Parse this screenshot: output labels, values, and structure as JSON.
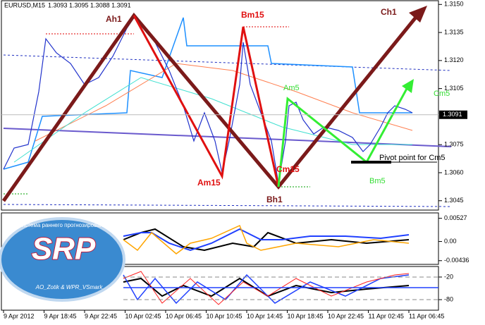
{
  "header": {
    "symbol": "EURUSD,M15",
    "ohlc": "1.3093 1.3095 1.3088 1.3091"
  },
  "price_axis": {
    "ylim": [
      1.304,
      1.3152
    ],
    "ticks": [
      {
        "value": 1.315,
        "label": "1.3150"
      },
      {
        "value": 1.3135,
        "label": "1.3135"
      },
      {
        "value": 1.312,
        "label": "1.3120"
      },
      {
        "value": 1.3105,
        "label": "1.3105"
      },
      {
        "value": 1.3075,
        "label": "1.3075"
      },
      {
        "value": 1.306,
        "label": "1.3060"
      },
      {
        "value": 1.3045,
        "label": "1.3045"
      }
    ],
    "current": 1.3091
  },
  "oscillator_axis": {
    "ylim": [
      -0.0052,
      0.0065
    ],
    "ticks": [
      0.00527,
      {
        "value": 0,
        "label": "0.00"
      },
      -0.00436
    ]
  },
  "wpr_axis": {
    "ylim": [
      -108,
      8
    ],
    "ticks": [
      -20,
      -80
    ]
  },
  "time_axis": {
    "labels": [
      "9 Apr 2012",
      "9 Apr 18:45",
      "9 Apr 22:45",
      "10 Apr 02:45",
      "10 Apr 06:45",
      "10 Apr 10:45",
      "10 Apr 14:45",
      "10 Apr 18:45",
      "10 Apr 22:45",
      "11 Apr 02:45",
      "11 Apr 06:45"
    ]
  },
  "annotations": {
    "ah1": "Ah1",
    "bh1": "Bh1",
    "ch1": "Ch1",
    "am15": "Am15",
    "bm15": "Bm15",
    "cm15": "Cm15",
    "am5": "Am5",
    "bm5": "Bm5",
    "cm5": "Cm5",
    "pivot": "Pivot point for Cm5"
  },
  "logo": {
    "title": "SRP",
    "arc_text": "Система раннего прогнозирования",
    "credits": "AO_Zotik & WPR_VSmark"
  }
}
